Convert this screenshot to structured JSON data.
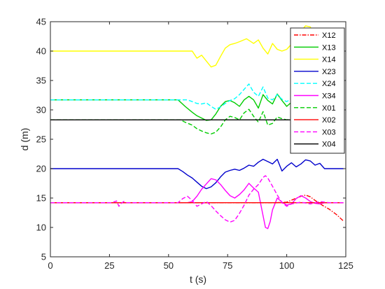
{
  "chart_data": {
    "type": "line",
    "xlabel": "t (s)",
    "ylabel": "d (m)",
    "xlim": [
      0,
      125
    ],
    "ylim": [
      5,
      45
    ],
    "xticks": [
      "0",
      "25",
      "50",
      "75",
      "100",
      "125"
    ],
    "yticks": [
      "5",
      "10",
      "15",
      "20",
      "25",
      "30",
      "35",
      "40",
      "45"
    ],
    "grid": false,
    "legend_position": "top-right",
    "series": [
      {
        "name": "X12",
        "color": "#ff0000",
        "dash": "dashdot",
        "x": [
          0,
          60,
          85,
          90,
          95,
          100,
          103,
          106,
          108,
          110,
          112,
          115,
          118,
          121,
          124
        ],
        "y": [
          14.2,
          14.2,
          14.2,
          14.2,
          14.2,
          14.3,
          14.8,
          15.3,
          15.5,
          15.2,
          14.6,
          13.8,
          13.1,
          12.2,
          11.1
        ]
      },
      {
        "name": "X13",
        "color": "#00cc00",
        "dash": "solid",
        "x": [
          0,
          54,
          57,
          60,
          62,
          64,
          66,
          68,
          70,
          72,
          74,
          76,
          78,
          80,
          82,
          84,
          86,
          88,
          90,
          92,
          94,
          96,
          98,
          100,
          102,
          104,
          106,
          108,
          110,
          112,
          114,
          116,
          118,
          120,
          122,
          124
        ],
        "y": [
          31.7,
          31.7,
          30.6,
          29.6,
          29.0,
          28.6,
          28.2,
          28.3,
          29.3,
          30.6,
          31.4,
          31.6,
          31.2,
          30.6,
          31.7,
          32.3,
          31.7,
          30.3,
          32.6,
          31.6,
          31.0,
          32.7,
          31.6,
          30.6,
          31.3,
          32.1,
          31.1,
          30.4,
          31.6,
          31.4,
          31.8,
          31.6,
          31.2,
          30.6,
          31.4,
          31.7
        ]
      },
      {
        "name": "X14",
        "color": "#ffff00",
        "dash": "solid",
        "x": [
          0,
          60,
          62,
          64,
          66,
          68,
          70,
          72,
          74,
          76,
          78,
          80,
          83,
          86,
          88,
          90,
          92,
          94,
          96,
          98,
          100,
          103,
          106,
          108,
          110,
          112,
          114,
          116,
          118,
          120,
          122,
          124
        ],
        "y": [
          40.0,
          40.0,
          38.8,
          39.3,
          38.3,
          37.3,
          37.6,
          39.1,
          40.5,
          41.1,
          41.3,
          41.6,
          42.1,
          41.3,
          41.9,
          40.5,
          39.5,
          41.3,
          40.3,
          40.0,
          40.3,
          41.6,
          43.4,
          44.3,
          44.1,
          42.3,
          40.9,
          39.6,
          38.6,
          37.0,
          35.8,
          35.0
        ]
      },
      {
        "name": "X23",
        "color": "#0000cc",
        "dash": "solid",
        "x": [
          0,
          54,
          56,
          58,
          60,
          62,
          64,
          66,
          68,
          70,
          72,
          74,
          76,
          78,
          80,
          82,
          84,
          86,
          88,
          90,
          92,
          94,
          96,
          98,
          100,
          102,
          104,
          106,
          108,
          110,
          112,
          114,
          116,
          118,
          124
        ],
        "y": [
          20.0,
          20.0,
          19.5,
          18.9,
          18.4,
          17.7,
          17.0,
          16.6,
          16.9,
          17.6,
          18.6,
          19.4,
          19.7,
          19.9,
          19.7,
          20.1,
          20.6,
          20.4,
          21.1,
          21.6,
          21.2,
          20.8,
          21.6,
          19.6,
          20.4,
          21.0,
          20.3,
          20.8,
          21.5,
          21.3,
          20.6,
          20.9,
          20.0,
          20.0,
          20.0
        ]
      },
      {
        "name": "X24",
        "color": "#00ffff",
        "dash": "dash",
        "x": [
          0,
          58,
          60,
          62,
          64,
          66,
          68,
          70,
          72,
          74,
          76,
          78,
          80,
          82,
          84,
          86,
          88,
          90,
          92,
          94,
          96,
          98,
          100,
          102,
          104,
          106,
          108,
          110,
          112,
          114,
          116,
          118,
          120,
          122,
          124
        ],
        "y": [
          31.7,
          31.7,
          31.4,
          31.1,
          31.0,
          31.2,
          30.6,
          30.1,
          30.5,
          31.1,
          31.6,
          31.9,
          32.6,
          33.5,
          34.4,
          33.0,
          32.3,
          33.9,
          32.0,
          31.7,
          32.6,
          31.8,
          31.4,
          31.9,
          31.6,
          31.9,
          32.0,
          31.8,
          31.6,
          31.4,
          31.7,
          31.8,
          31.6,
          31.7,
          31.7
        ]
      },
      {
        "name": "X34",
        "color": "#ff00ff",
        "dash": "solid",
        "x": [
          0,
          58,
          60,
          62,
          64,
          66,
          68,
          70,
          72,
          74,
          76,
          78,
          80,
          82,
          84,
          86,
          88,
          90,
          91,
          92,
          93,
          94,
          96,
          98,
          100,
          102,
          104,
          106,
          108,
          110,
          112,
          114,
          116,
          118,
          120,
          124
        ],
        "y": [
          14.2,
          14.2,
          14.4,
          15.3,
          16.5,
          17.4,
          18.3,
          18.1,
          17.3,
          16.3,
          15.4,
          15.0,
          15.6,
          16.4,
          17.5,
          16.7,
          16.0,
          12.0,
          10.0,
          9.8,
          11.0,
          13.0,
          15.0,
          14.3,
          13.8,
          14.0,
          14.9,
          15.4,
          15.0,
          14.4,
          14.1,
          14.0,
          14.2,
          14.2,
          14.2,
          14.2
        ]
      },
      {
        "name": "X01",
        "color": "#00cc00",
        "dash": "dash",
        "x": [
          0,
          55,
          57,
          60,
          62,
          64,
          66,
          68,
          70,
          72,
          74,
          76,
          78,
          80,
          82,
          84,
          86,
          88,
          90,
          92,
          94,
          96,
          98,
          100,
          104,
          108,
          112,
          116,
          120,
          124
        ],
        "y": [
          28.3,
          28.3,
          27.9,
          27.4,
          26.8,
          26.4,
          26.1,
          25.9,
          26.2,
          27.1,
          28.3,
          28.9,
          28.7,
          28.3,
          29.5,
          30.1,
          28.9,
          27.9,
          29.7,
          27.4,
          27.7,
          28.8,
          28.5,
          28.3,
          28.6,
          28.2,
          28.4,
          28.3,
          28.3,
          28.3
        ]
      },
      {
        "name": "X02",
        "color": "#ff0000",
        "dash": "solid",
        "x": [
          0,
          124
        ],
        "y": [
          14.2,
          14.2
        ]
      },
      {
        "name": "X03",
        "color": "#ff00ff",
        "dash": "dash",
        "x": [
          0,
          26,
          28,
          29,
          30,
          31,
          32,
          54,
          56,
          58,
          60,
          62,
          64,
          66,
          68,
          70,
          72,
          74,
          76,
          78,
          80,
          82,
          84,
          86,
          88,
          90,
          91,
          92,
          94,
          96,
          98,
          100,
          102,
          106,
          110,
          114,
          118,
          124
        ],
        "y": [
          14.2,
          14.2,
          14.5,
          13.6,
          14.1,
          14.4,
          14.2,
          14.2,
          14.9,
          15.3,
          14.6,
          13.6,
          14.0,
          14.4,
          13.7,
          12.8,
          12.0,
          11.3,
          10.9,
          11.2,
          12.4,
          13.8,
          15.5,
          16.5,
          17.3,
          18.5,
          18.8,
          18.4,
          17.0,
          15.5,
          14.2,
          13.6,
          14.0,
          14.3,
          14.0,
          14.4,
          14.2,
          14.2
        ]
      },
      {
        "name": "X04",
        "color": "#000000",
        "dash": "solid",
        "x": [
          0,
          124
        ],
        "y": [
          28.3,
          28.3
        ]
      }
    ]
  }
}
